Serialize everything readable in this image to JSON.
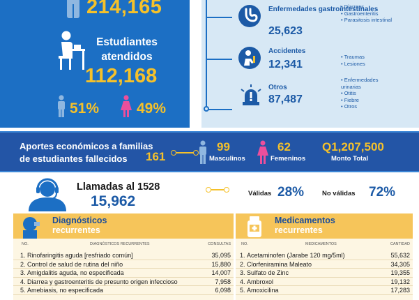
{
  "top_left": {
    "total_value": "214,165",
    "label": "Estudiantes atendidos",
    "attended_value": "112,168",
    "male_pct": "51%",
    "female_pct": "49%"
  },
  "top_right": {
    "categories": [
      {
        "title": "Enfermedades gastrointestinales",
        "value": "25,623",
        "items": [
          "Diarreas",
          "Gastroenteritis",
          "Parasitosis intestinal"
        ],
        "icon": "stomach-icon"
      },
      {
        "title": "Accidentes",
        "value": "12,341",
        "items": [
          "Traumas",
          "Lesiones"
        ],
        "icon": "injury-icon"
      },
      {
        "title": "Otros",
        "value": "87,487",
        "items": [
          "Enfermedades urinarias",
          "Otitis",
          "Fiebre",
          "Otros"
        ],
        "icon": "alarm-icon"
      }
    ]
  },
  "aportes": {
    "text": "Aportes económicos a familias de estudiantes fallecidos",
    "total": "161",
    "male_count": "99",
    "male_label": "Masculinos",
    "female_count": "62",
    "female_label": "Femeninos",
    "amount": "Q1,207,500",
    "amount_label": "Monto Total"
  },
  "calls": {
    "title": "Llamadas al 1528",
    "value": "15,962",
    "valid_label": "Válidas",
    "valid_pct": "28%",
    "invalid_label": "No válidas",
    "invalid_pct": "72%"
  },
  "diagnosticos": {
    "title": "Diagnósticos",
    "subtitle": "recurrentes",
    "col_no": "NO.",
    "col_name": "DIAGNÓSTICOS RECURRENTES",
    "col_value": "CONSULTAS",
    "rows": [
      {
        "n": "1.",
        "name": "Rinofaringitis aguda [resfriado común]",
        "value": "35,095"
      },
      {
        "n": "2.",
        "name": "Control de salud de rutina del niño",
        "value": "15,880"
      },
      {
        "n": "3.",
        "name": "Amigdalitis aguda, no especificada",
        "value": "14,007"
      },
      {
        "n": "4.",
        "name": "Diarrea y gastroenteritis de presunto origen infeccioso",
        "value": "7,958"
      },
      {
        "n": "5.",
        "name": "Amebiasis, no especificada",
        "value": "6,098"
      }
    ]
  },
  "medicamentos": {
    "title": "Medicamentos",
    "subtitle": "recurrentes",
    "col_no": "NO.",
    "col_name": "MEDICAMENTOS",
    "col_value": "CANTIDAD",
    "rows": [
      {
        "n": "1.",
        "name": "Acetaminofen (Jarabe 120 mg/5ml)",
        "value": "55,632"
      },
      {
        "n": "2.",
        "name": "Clorfeniramina Maleato",
        "value": "34,305"
      },
      {
        "n": "3.",
        "name": "Sulfato de Zinc",
        "value": "19,355"
      },
      {
        "n": "4.",
        "name": "Ambroxol",
        "value": "19,132"
      },
      {
        "n": "5.",
        "name": "Amoxicilina",
        "value": "17,283"
      }
    ]
  },
  "colors": {
    "blue": "#1c6fc4",
    "dark_blue": "#2355a6",
    "yellow": "#f5c12a",
    "light_blue": "#d7e8f5",
    "pink": "#ec4f9c"
  }
}
